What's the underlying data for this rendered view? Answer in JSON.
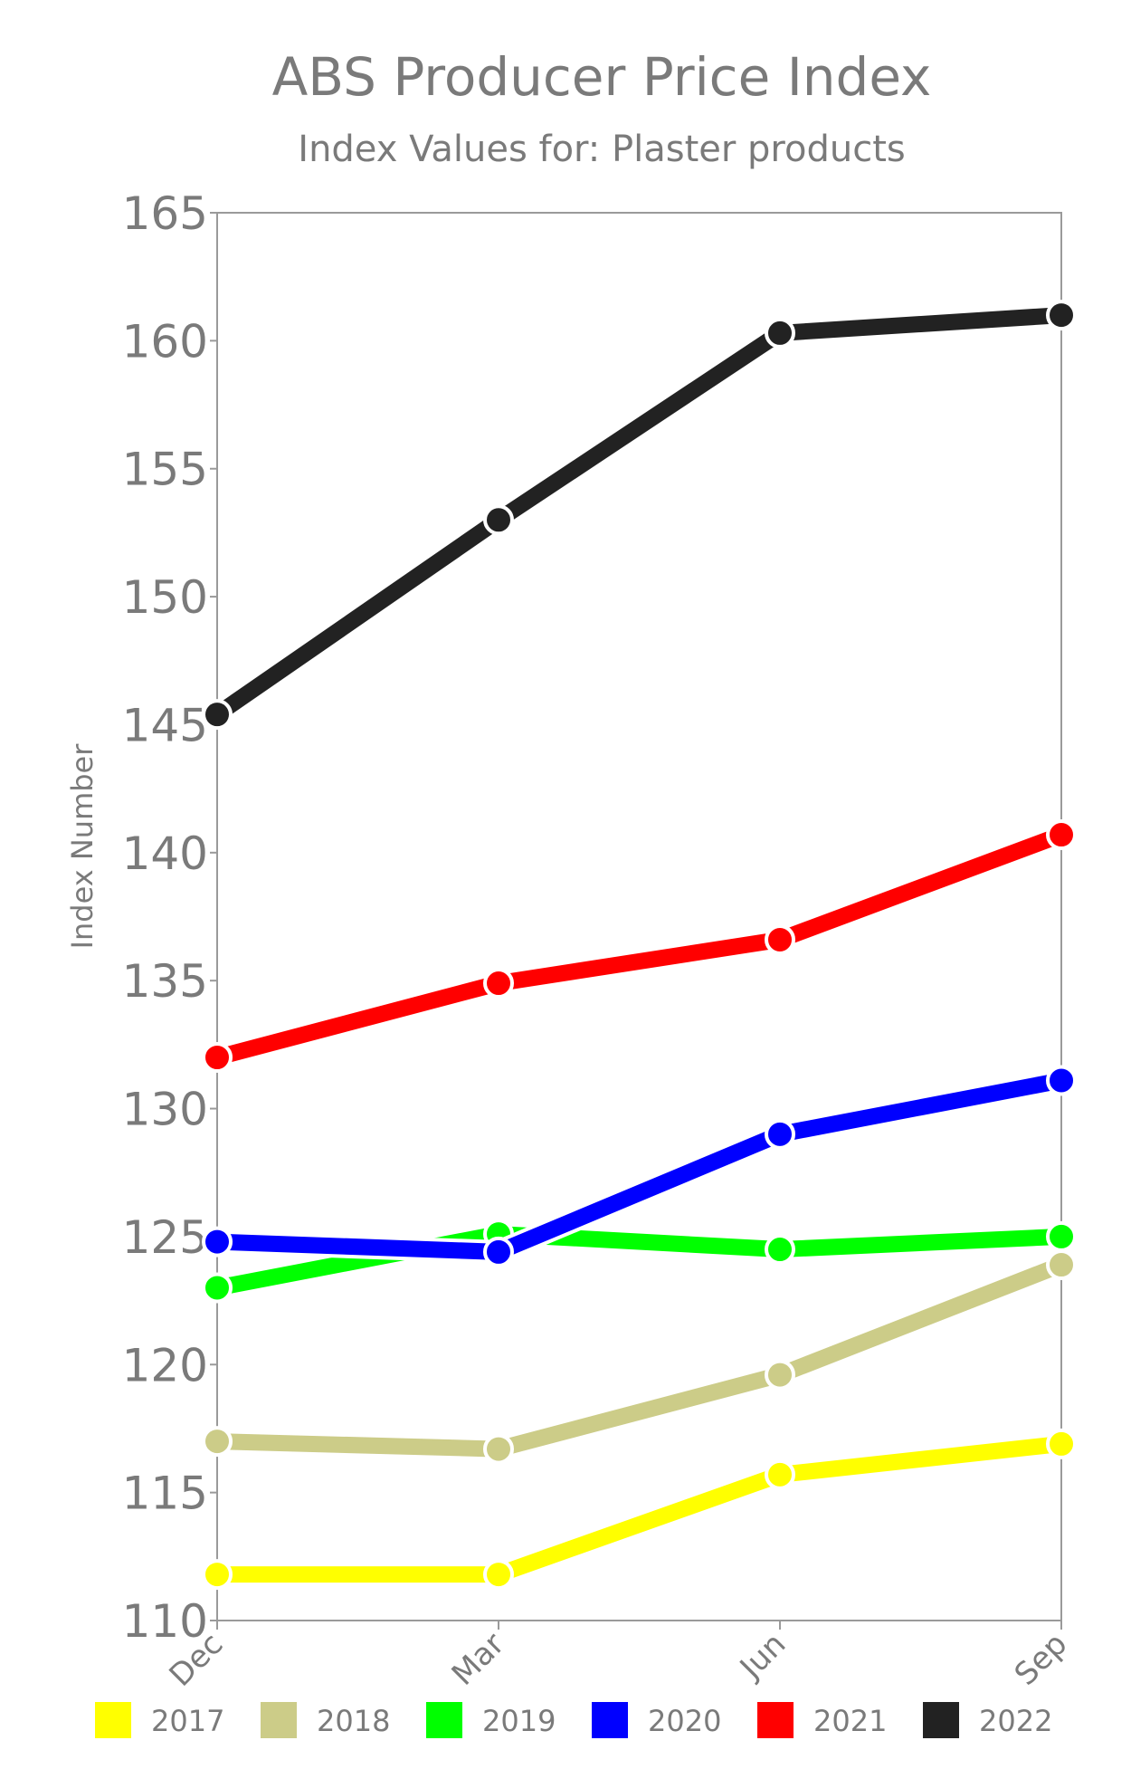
{
  "chart_data": {
    "type": "line",
    "title": "ABS Producer Price Index",
    "subtitle": "Index Values for: Plaster products",
    "xlabel": "",
    "ylabel": "Index Number",
    "categories": [
      "Dec",
      "Mar",
      "Jun",
      "Sep"
    ],
    "ylim": [
      110,
      165
    ],
    "yticks": [
      110,
      115,
      120,
      125,
      130,
      135,
      140,
      145,
      150,
      155,
      160,
      165
    ],
    "grid": false,
    "legend_position": "bottom",
    "series": [
      {
        "name": "2017",
        "color": "#ffff00",
        "values": [
          111.8,
          111.8,
          115.7,
          116.9
        ]
      },
      {
        "name": "2018",
        "color": "#cccc88",
        "values": [
          117.0,
          116.7,
          119.6,
          123.9
        ]
      },
      {
        "name": "2019",
        "color": "#00ff00",
        "values": [
          123.0,
          125.1,
          124.5,
          125.0
        ]
      },
      {
        "name": "2020",
        "color": "#0000ff",
        "values": [
          124.8,
          124.4,
          129.0,
          131.1
        ]
      },
      {
        "name": "2021",
        "color": "#ff0000",
        "values": [
          132.0,
          134.9,
          136.6,
          140.7
        ]
      },
      {
        "name": "2022",
        "color": "#222222",
        "values": [
          145.4,
          153.0,
          160.3,
          161.0
        ]
      }
    ]
  }
}
